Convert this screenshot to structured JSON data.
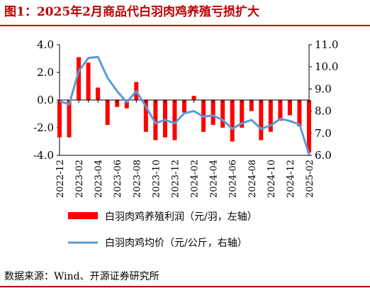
{
  "title": "图1：2025年2月商品代白羽肉鸡养殖亏损扩大",
  "source": "数据来源：Wind、开源证券研究所",
  "colors": {
    "bar": "#FF0000",
    "line": "#5B9BD5",
    "accent": "#C00000"
  },
  "chart_data": {
    "type": "bar",
    "legend_position": "bottom",
    "grid": false,
    "x_tick_labels": [
      "2022-12",
      "2023-02",
      "2023-04",
      "2023-06",
      "2023-08",
      "2023-10",
      "2023-12",
      "2024-02",
      "2024-04",
      "2024-06",
      "2024-08",
      "2024-10",
      "2024-12",
      "2025-02"
    ],
    "yleft": {
      "ticks": [
        "-4.0",
        "-2.0",
        "0.0",
        "2.0",
        "4.0"
      ],
      "ylim": [
        -4,
        4
      ]
    },
    "yright": {
      "ticks": [
        "6.0",
        "7.0",
        "8.0",
        "9.0",
        "10.0",
        "11.0"
      ],
      "ylim": [
        6,
        11
      ]
    },
    "x": [
      "2022-12",
      "2023-01",
      "2023-02",
      "2023-03",
      "2023-04",
      "2023-05",
      "2023-06",
      "2023-07",
      "2023-08",
      "2023-09",
      "2023-10",
      "2023-11",
      "2023-12",
      "2024-01",
      "2024-02",
      "2024-03",
      "2024-04",
      "2024-05",
      "2024-06",
      "2024-07",
      "2024-08",
      "2024-09",
      "2024-10",
      "2024-11",
      "2024-12",
      "2025-01",
      "2025-02"
    ],
    "series": [
      {
        "name": "白羽肉鸡养殖利润（元/羽，左轴）",
        "type": "bar",
        "axis": "left",
        "values": [
          -2.7,
          -2.7,
          3.1,
          2.7,
          0.9,
          -1.8,
          -0.5,
          -0.6,
          1.3,
          -2.3,
          -2.9,
          -2.7,
          -2.9,
          -0.9,
          0.3,
          -2.3,
          -1.8,
          -2.0,
          -3.0,
          -2.0,
          -0.8,
          -2.9,
          -2.3,
          -1.5,
          -1.1,
          -1.9,
          -3.8
        ]
      },
      {
        "name": "白羽肉鸡均价（元/公斤，右轴）",
        "type": "line",
        "axis": "right",
        "values": [
          8.45,
          8.3,
          9.8,
          10.4,
          10.45,
          9.5,
          8.9,
          8.4,
          8.9,
          8.2,
          7.45,
          7.6,
          7.45,
          7.9,
          8.0,
          7.75,
          7.8,
          7.6,
          7.2,
          7.45,
          7.6,
          7.2,
          7.35,
          7.65,
          7.55,
          7.4,
          6.05
        ]
      }
    ]
  }
}
